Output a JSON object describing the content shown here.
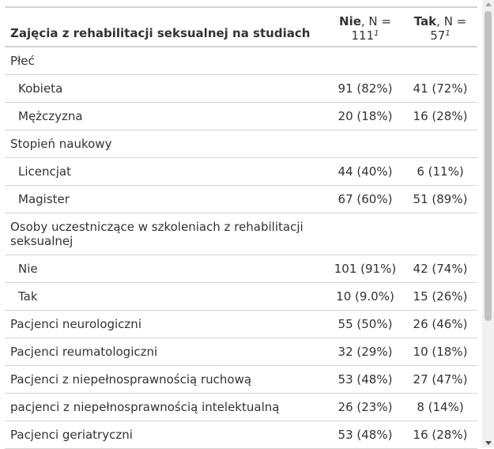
{
  "table": {
    "header": {
      "label": "Zajęcia z rehabilitacji seksualnej na studiach",
      "col_nie": {
        "name": "Nie",
        "n_text": ", N =",
        "n_value": "111",
        "footnote": "1"
      },
      "col_tak": {
        "name": "Tak",
        "n_text": ", N =",
        "n_value": "57",
        "footnote": "1"
      }
    },
    "rows": [
      {
        "label": "Płeć",
        "nie": "",
        "tak": ""
      },
      {
        "label": "Kobieta",
        "nie": "91 (82%)",
        "tak": "41 (72%)"
      },
      {
        "label": "Mężczyzna",
        "nie": "20 (18%)",
        "tak": "16 (28%)"
      },
      {
        "label": "Stopień naukowy",
        "nie": "",
        "tak": ""
      },
      {
        "label": "Licencjat",
        "nie": "44 (40%)",
        "tak": "6 (11%)"
      },
      {
        "label": "Magister",
        "nie": "67 (60%)",
        "tak": "51 (89%)"
      },
      {
        "label": "Osoby uczestniczące w szkoleniach z rehabilitacji seksualnej",
        "nie": "",
        "tak": ""
      },
      {
        "label": "Nie",
        "nie": "101 (91%)",
        "tak": "42 (74%)"
      },
      {
        "label": "Tak",
        "nie": "10 (9.0%)",
        "tak": "15 (26%)"
      },
      {
        "label": "Pacjenci neurologiczni",
        "nie": "55 (50%)",
        "tak": "26 (46%)"
      },
      {
        "label": "Pacjenci reumatologiczni",
        "nie": "32 (29%)",
        "tak": "10 (18%)"
      },
      {
        "label": "Pacjenci z niepełnosprawnością ruchową",
        "nie": "53 (48%)",
        "tak": "27 (47%)"
      },
      {
        "label": "pacjenci z niepełnosprawnością intelektualną",
        "nie": "26 (23%)",
        "tak": "8 (14%)"
      },
      {
        "label": "Pacjenci geriatryczni",
        "nie": "53 (48%)",
        "tak": "16 (28%)"
      }
    ]
  }
}
